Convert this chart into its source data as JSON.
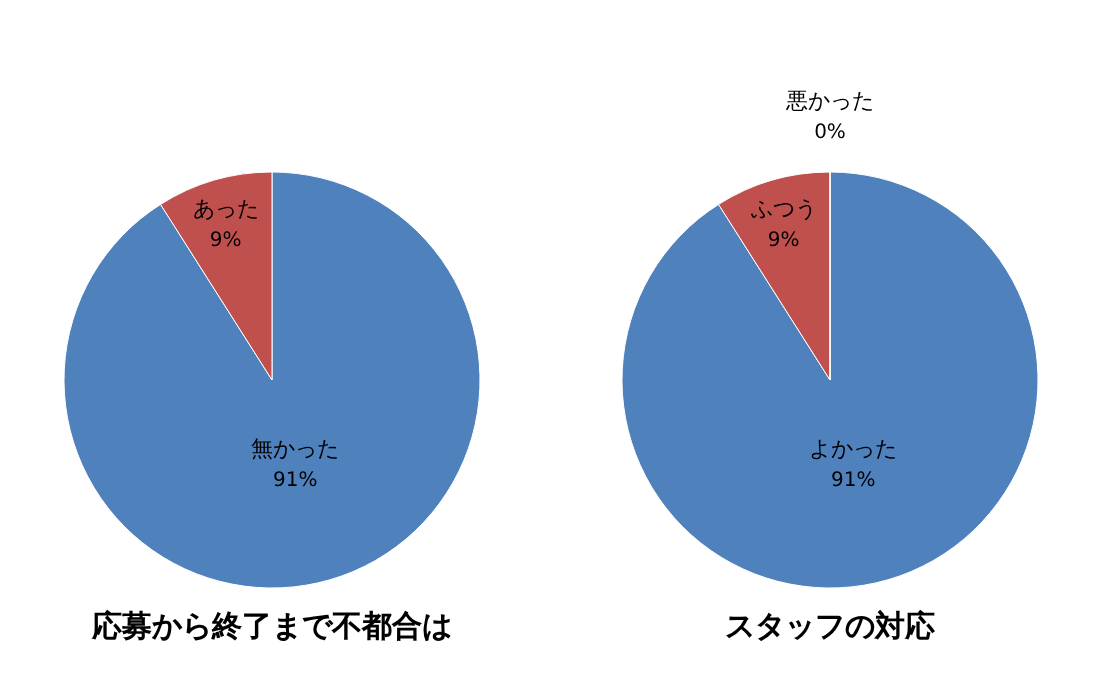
{
  "chart_data": [
    {
      "type": "pie",
      "title": "応募から終了まで不都合は",
      "categories": [
        "無かった",
        "あった"
      ],
      "values": [
        91,
        9
      ],
      "colors": [
        "#4f81bd",
        "#c0504d"
      ],
      "value_labels": [
        "91%",
        "9%"
      ]
    },
    {
      "type": "pie",
      "title": "スタッフの対応",
      "categories": [
        "よかった",
        "ふつう",
        "悪かった"
      ],
      "values": [
        91,
        9,
        0
      ],
      "colors": [
        "#4f81bd",
        "#c0504d",
        "#9bbb59"
      ],
      "value_labels": [
        "91%",
        "9%",
        "0%"
      ]
    }
  ]
}
